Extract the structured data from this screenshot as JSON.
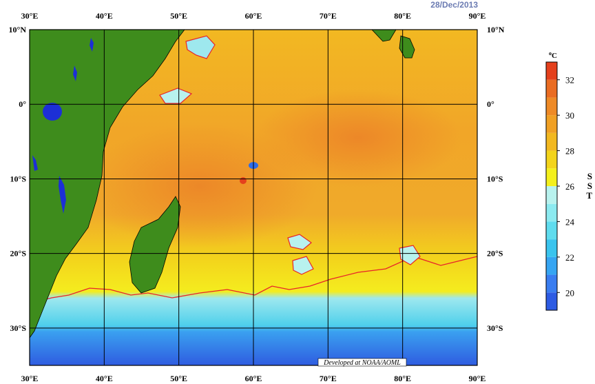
{
  "date": "28/Dec/2013",
  "credit": "Developed at NOAA/AOML",
  "colorbar": {
    "unit_superscript": "o",
    "unit": "C",
    "title_letters": [
      "S",
      "S",
      "T"
    ],
    "ticks": [
      "32",
      "30",
      "28",
      "26",
      "24",
      "22",
      "20"
    ],
    "tick_values": [
      32,
      30,
      28,
      26,
      24,
      22,
      20
    ],
    "range": [
      19,
      33
    ],
    "bands": [
      {
        "from": 19,
        "to": 20,
        "color": "#2d5be3"
      },
      {
        "from": 20,
        "to": 21,
        "color": "#3a7df0"
      },
      {
        "from": 21,
        "to": 22,
        "color": "#36a5f2"
      },
      {
        "from": 22,
        "to": 23,
        "color": "#3ac4ee"
      },
      {
        "from": 23,
        "to": 24,
        "color": "#5fdcee"
      },
      {
        "from": 24,
        "to": 25,
        "color": "#8ceaf0"
      },
      {
        "from": 25,
        "to": 26,
        "color": "#b8f2ee"
      },
      {
        "from": 26,
        "to": 27,
        "color": "#f4f01c"
      },
      {
        "from": 27,
        "to": 28,
        "color": "#f3d41b"
      },
      {
        "from": 28,
        "to": 29,
        "color": "#f2b820"
      },
      {
        "from": 29,
        "to": 30,
        "color": "#f0a024"
      },
      {
        "from": 30,
        "to": 31,
        "color": "#ee8a26"
      },
      {
        "from": 31,
        "to": 32,
        "color": "#ea6c22"
      },
      {
        "from": 32,
        "to": 33,
        "color": "#e4401c"
      }
    ]
  },
  "axes": {
    "lon_labels": [
      "30°E",
      "40°E",
      "50°E",
      "60°E",
      "70°E",
      "80°E",
      "90°E"
    ],
    "lon_values": [
      30,
      40,
      50,
      60,
      70,
      80,
      90
    ],
    "lat_labels": [
      "10°N",
      "0°",
      "10°S",
      "20°S",
      "30°S"
    ],
    "lat_values": [
      10,
      0,
      -10,
      -20,
      -30
    ],
    "lon_range": [
      30,
      90
    ],
    "lat_range": [
      -35,
      10
    ]
  },
  "colors": {
    "land": "#3e8c1c",
    "lake": "#1c2fd6",
    "contour": "#e8222a",
    "grid": "#000000"
  }
}
